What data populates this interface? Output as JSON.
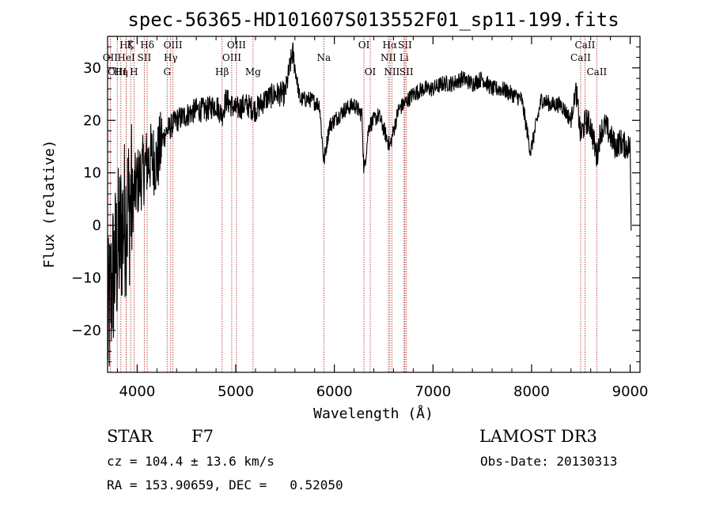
{
  "chart_data": {
    "type": "line",
    "title": "spec-56365-HD101607S013552F01_sp11-199.fits",
    "xlabel": "Wavelength (Å)",
    "ylabel": "Flux (relative)",
    "xlim": [
      3700,
      9100
    ],
    "ylim": [
      -28,
      36
    ],
    "xticks": [
      4000,
      5000,
      6000,
      7000,
      8000,
      9000
    ],
    "yticks": [
      -20,
      -10,
      0,
      10,
      20,
      30
    ],
    "xtick_labels": [
      "4000",
      "5000",
      "6000",
      "7000",
      "8000",
      "9000"
    ],
    "ytick_labels": [
      "−20",
      "−10",
      "0",
      "10",
      "20",
      "30"
    ],
    "line_color": "#000000",
    "marker_color": "#b22222",
    "spectral_lines": [
      {
        "wl": 3727,
        "label": "OII",
        "row": 2
      },
      {
        "wl": 3798,
        "label": "OIII",
        "row": 3
      },
      {
        "wl": 3835,
        "label": "Hη",
        "row": 3
      },
      {
        "wl": 3889,
        "label": "Hζ",
        "row": 1
      },
      {
        "wl": 3889,
        "label": "HeI",
        "row": 2
      },
      {
        "wl": 3934,
        "label": "K",
        "row": 1
      },
      {
        "wl": 3968,
        "label": "H",
        "row": 3
      },
      {
        "wl": 4072,
        "label": "SII",
        "row": 2
      },
      {
        "wl": 4102,
        "label": "Hδ",
        "row": 1
      },
      {
        "wl": 4304,
        "label": "G",
        "row": 3
      },
      {
        "wl": 4340,
        "label": "Hγ",
        "row": 2
      },
      {
        "wl": 4363,
        "label": "OIII",
        "row": 1
      },
      {
        "wl": 4861,
        "label": "Hβ",
        "row": 3
      },
      {
        "wl": 4959,
        "label": "OIII",
        "row": 2
      },
      {
        "wl": 5007,
        "label": "OIII",
        "row": 1
      },
      {
        "wl": 5175,
        "label": "Mg",
        "row": 3
      },
      {
        "wl": 5893,
        "label": "Na",
        "row": 2
      },
      {
        "wl": 6300,
        "label": "OI",
        "row": 1
      },
      {
        "wl": 6364,
        "label": "OI",
        "row": 3
      },
      {
        "wl": 6548,
        "label": "NII",
        "row": 2
      },
      {
        "wl": 6563,
        "label": "Hα",
        "row": 1
      },
      {
        "wl": 6583,
        "label": "NII",
        "row": 3
      },
      {
        "wl": 6707,
        "label": "Li",
        "row": 2
      },
      {
        "wl": 6716,
        "label": "SII",
        "row": 1
      },
      {
        "wl": 6731,
        "label": "SII",
        "row": 3
      },
      {
        "wl": 8498,
        "label": "CaII",
        "row": 2
      },
      {
        "wl": 8542,
        "label": "CaII",
        "row": 1
      },
      {
        "wl": 8662,
        "label": "CaII",
        "row": 3
      }
    ],
    "series": [
      {
        "name": "flux",
        "x": [
          3700,
          3750,
          3800,
          3850,
          3900,
          3950,
          4000,
          4050,
          4100,
          4150,
          4200,
          4250,
          4300,
          4350,
          4400,
          4500,
          4600,
          4700,
          4800,
          4861,
          4900,
          5000,
          5100,
          5200,
          5300,
          5400,
          5500,
          5577,
          5650,
          5750,
          5850,
          5893,
          5950,
          6100,
          6200,
          6280,
          6300,
          6350,
          6450,
          6563,
          6650,
          6800,
          6900,
          7000,
          7100,
          7200,
          7300,
          7400,
          7500,
          7600,
          7700,
          7800,
          7900,
          7990,
          8100,
          8200,
          8300,
          8400,
          8450,
          8498,
          8550,
          8600,
          8662,
          8700,
          8750,
          8800,
          8850,
          8900,
          8960,
          9000,
          9010
        ],
        "y": [
          -20,
          -10,
          -5,
          0,
          3,
          5,
          8,
          10,
          12,
          13,
          12,
          16,
          18,
          19,
          20,
          21,
          22,
          22,
          23,
          21,
          24,
          22,
          23,
          22,
          24,
          25,
          25,
          33,
          24,
          24,
          23,
          12,
          19,
          22,
          23,
          21,
          10,
          19,
          21,
          15,
          22,
          25,
          26,
          26,
          27,
          27,
          28,
          27,
          28,
          26,
          26,
          25,
          24,
          14,
          24,
          23,
          23,
          20,
          26,
          17,
          20,
          19,
          13,
          18,
          19,
          17,
          15,
          16,
          15,
          15,
          0
        ]
      }
    ]
  },
  "info": {
    "object_class": "STAR",
    "subclass": "F7",
    "survey": "LAMOST DR3",
    "cz": "cz = 104.4 ± 13.6 km/s",
    "obs_date": "Obs-Date: 20130313",
    "radec": "RA = 153.90659, DEC =   0.52050"
  }
}
